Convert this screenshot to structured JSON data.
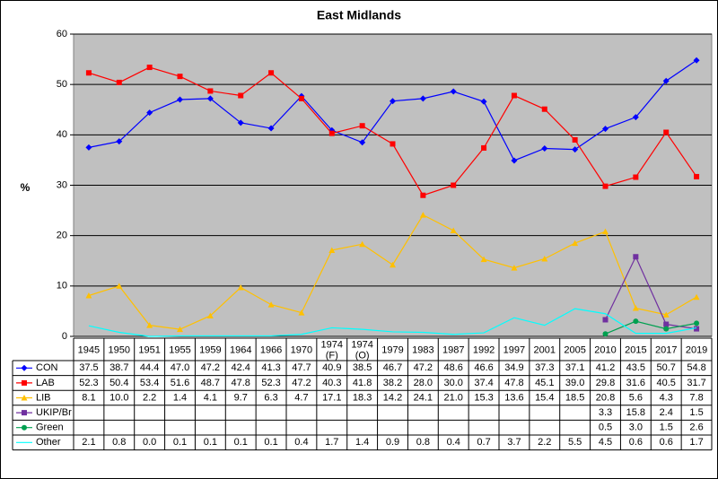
{
  "chart_data": {
    "type": "line",
    "title": "East Midlands",
    "y_label": "%",
    "categories": [
      "1945",
      "1950",
      "1951",
      "1955",
      "1959",
      "1964",
      "1966",
      "1970",
      "1974\n(F)",
      "1974\n(O)",
      "1979",
      "1983",
      "1987",
      "1992",
      "1997",
      "2001",
      "2005",
      "2010",
      "2015",
      "2017",
      "2019"
    ],
    "ylim": [
      0,
      60
    ],
    "yticks": [
      0,
      10,
      20,
      30,
      40,
      50,
      60
    ],
    "grid": true,
    "plot_background": "#c0c0c0",
    "series": [
      {
        "name": "CON",
        "color": "#0000ff",
        "marker": "diamond",
        "values": [
          37.5,
          38.7,
          44.4,
          47.0,
          47.2,
          42.4,
          41.3,
          47.7,
          40.9,
          38.5,
          46.7,
          47.2,
          48.6,
          46.6,
          34.9,
          37.3,
          37.1,
          41.2,
          43.5,
          50.7,
          54.8
        ],
        "value_labels": [
          "37.5",
          "38.7",
          "44.4",
          "47.0",
          "47.2",
          "42.4",
          "41.3",
          "47.7",
          "40.9",
          "38.5",
          "46.7",
          "47.2",
          "48.6",
          "46.6",
          "34.9",
          "37.3",
          "37.1",
          "41.2",
          "43.5",
          "50.7",
          "54.8"
        ]
      },
      {
        "name": "LAB",
        "color": "#ff0000",
        "marker": "square",
        "values": [
          52.3,
          50.4,
          53.4,
          51.6,
          48.7,
          47.8,
          52.3,
          47.2,
          40.3,
          41.8,
          38.2,
          28.0,
          30.0,
          37.4,
          47.8,
          45.1,
          39.0,
          29.8,
          31.6,
          40.5,
          31.7
        ],
        "value_labels": [
          "52.3",
          "50.4",
          "53.4",
          "51.6",
          "48.7",
          "47.8",
          "52.3",
          "47.2",
          "40.3",
          "41.8",
          "38.2",
          "28.0",
          "30.0",
          "37.4",
          "47.8",
          "45.1",
          "39.0",
          "29.8",
          "31.6",
          "40.5",
          "31.7"
        ]
      },
      {
        "name": "LIB",
        "color": "#ffc000",
        "marker": "triangle",
        "values": [
          8.1,
          10.0,
          2.2,
          1.4,
          4.1,
          9.7,
          6.3,
          4.7,
          17.1,
          18.3,
          14.2,
          24.1,
          21.0,
          15.3,
          13.6,
          15.4,
          18.5,
          20.8,
          5.6,
          4.3,
          7.8
        ],
        "value_labels": [
          "8.1",
          "10.0",
          "2.2",
          "1.4",
          "4.1",
          "9.7",
          "6.3",
          "4.7",
          "17.1",
          "18.3",
          "14.2",
          "24.1",
          "21.0",
          "15.3",
          "13.6",
          "15.4",
          "18.5",
          "20.8",
          "5.6",
          "4.3",
          "7.8"
        ]
      },
      {
        "name": "UKIP/Br",
        "color": "#7030a0",
        "marker": "square",
        "values": [
          null,
          null,
          null,
          null,
          null,
          null,
          null,
          null,
          null,
          null,
          null,
          null,
          null,
          null,
          null,
          null,
          null,
          3.3,
          15.8,
          2.4,
          1.5
        ],
        "value_labels": [
          null,
          null,
          null,
          null,
          null,
          null,
          null,
          null,
          null,
          null,
          null,
          null,
          null,
          null,
          null,
          null,
          null,
          "3.3",
          "15.8",
          "2.4",
          "1.5"
        ]
      },
      {
        "name": "Green",
        "color": "#00a050",
        "marker": "circle",
        "values": [
          null,
          null,
          null,
          null,
          null,
          null,
          null,
          null,
          null,
          null,
          null,
          null,
          null,
          null,
          null,
          null,
          null,
          0.5,
          3.0,
          1.5,
          2.6
        ],
        "value_labels": [
          null,
          null,
          null,
          null,
          null,
          null,
          null,
          null,
          null,
          null,
          null,
          null,
          null,
          null,
          null,
          null,
          null,
          "0.5",
          "3.0",
          "1.5",
          "2.6"
        ]
      },
      {
        "name": "Other",
        "color": "#00ffff",
        "marker": "none",
        "values": [
          2.1,
          0.8,
          0.0,
          0.1,
          0.1,
          0.1,
          0.1,
          0.4,
          1.7,
          1.4,
          0.9,
          0.8,
          0.4,
          0.7,
          3.7,
          2.2,
          5.5,
          4.5,
          0.6,
          0.6,
          1.7
        ],
        "value_labels": [
          "2.1",
          "0.8",
          "0.0",
          "0.1",
          "0.1",
          "0.1",
          "0.1",
          "0.4",
          "1.7",
          "1.4",
          "0.9",
          "0.8",
          "0.4",
          "0.7",
          "3.7",
          "2.2",
          "5.5",
          "4.5",
          "0.6",
          "0.6",
          "1.7"
        ]
      }
    ]
  }
}
